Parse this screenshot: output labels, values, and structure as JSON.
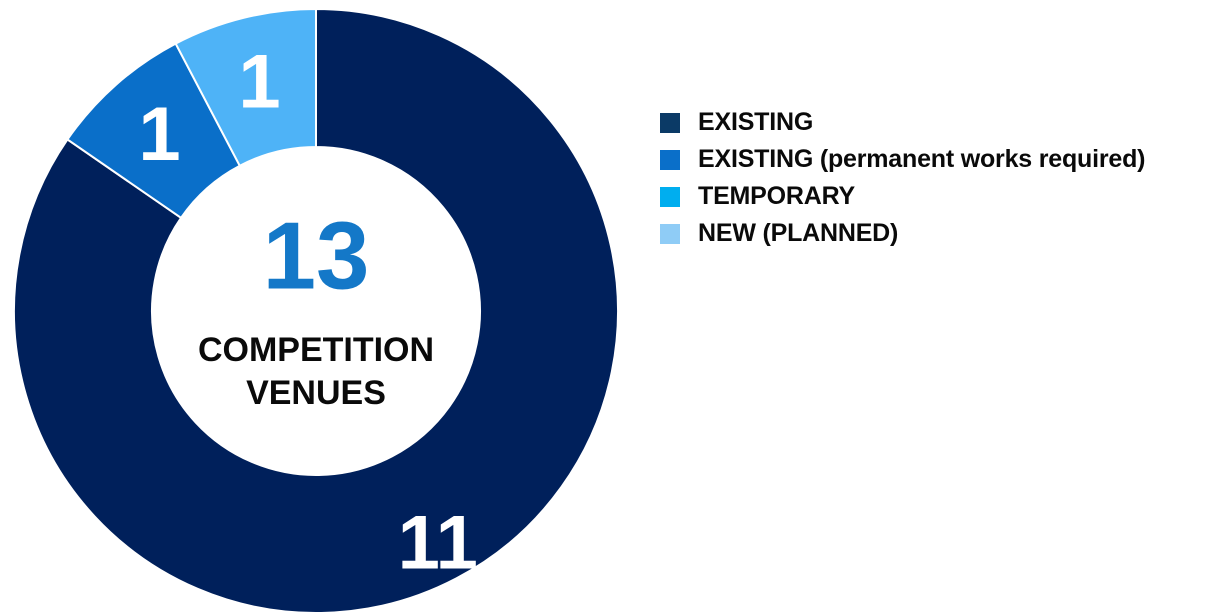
{
  "chart_data": {
    "type": "pie",
    "title": "",
    "center_value": "13",
    "center_caption_lines": [
      "COMPETITION",
      "VENUES"
    ],
    "categories": [
      "EXISTING",
      "EXISTING (permanent works required)",
      "TEMPORARY",
      "NEW (PLANNED)"
    ],
    "values": [
      11,
      1,
      0,
      1
    ],
    "slice_labels": [
      "11",
      "1",
      "",
      "1"
    ],
    "slice_colors": [
      "#00205b",
      "#0a6fc9",
      "#00aeef",
      "#4eb3f7"
    ],
    "legend_colors": [
      "#0b3a66",
      "#0a6fc9",
      "#00aeef",
      "#8fccf6"
    ],
    "center_value_color": "#1478c8",
    "legend_placement": "right",
    "legend": {
      "items": [
        {
          "label": "EXISTING",
          "suffix": ""
        },
        {
          "label": "EXISTING",
          "suffix": " (permanent works required)"
        },
        {
          "label": "TEMPORARY",
          "suffix": ""
        },
        {
          "label": "NEW (PLANNED)",
          "suffix": ""
        }
      ]
    }
  }
}
